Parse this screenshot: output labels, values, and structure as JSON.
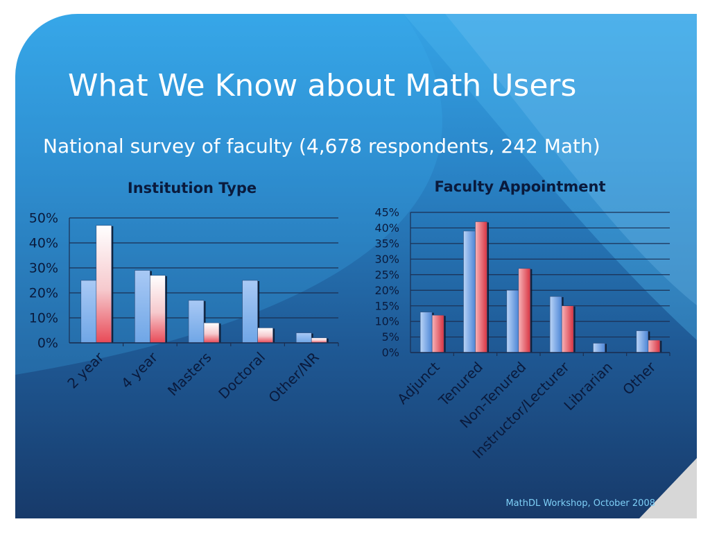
{
  "slide": {
    "title": "What We Know about Math Users",
    "subtitle": "National survey of faculty (4,678 respondents, 242 Math)",
    "footer": "MathDL Workshop, October 2008"
  },
  "colors": {
    "series_blue": "#6fa6e6",
    "series_red": "#e84a57",
    "series_light": "#ffffff",
    "axis_text": "#0a1a3c"
  },
  "chart_data": [
    {
      "type": "bar",
      "title": "Institution Type",
      "categories": [
        "2 year",
        "4 year",
        "Masters",
        "Doctoral",
        "Other/NR"
      ],
      "series": [
        {
          "values": [
            25,
            29,
            17,
            25,
            4
          ]
        },
        {
          "values": [
            47,
            27,
            8,
            6,
            2
          ]
        }
      ],
      "ylim": [
        0,
        50
      ],
      "yticks": [
        "0%",
        "10%",
        "20%",
        "30%",
        "40%",
        "50%"
      ],
      "grid": true,
      "legend": "none"
    },
    {
      "type": "bar",
      "title": "Faculty Appointment",
      "categories": [
        "Adjunct",
        "Tenured",
        "Non-Tenured",
        "Instructor/Lecturer",
        "Librarian",
        "Other"
      ],
      "series": [
        {
          "values": [
            13,
            39,
            20,
            18,
            3,
            7
          ]
        },
        {
          "values": [
            12,
            42,
            27,
            15,
            0,
            4
          ]
        }
      ],
      "ylim": [
        0,
        45
      ],
      "yticks": [
        "0%",
        "5%",
        "10%",
        "15%",
        "20%",
        "25%",
        "30%",
        "35%",
        "40%",
        "45%"
      ],
      "grid": true,
      "legend": "none"
    }
  ]
}
